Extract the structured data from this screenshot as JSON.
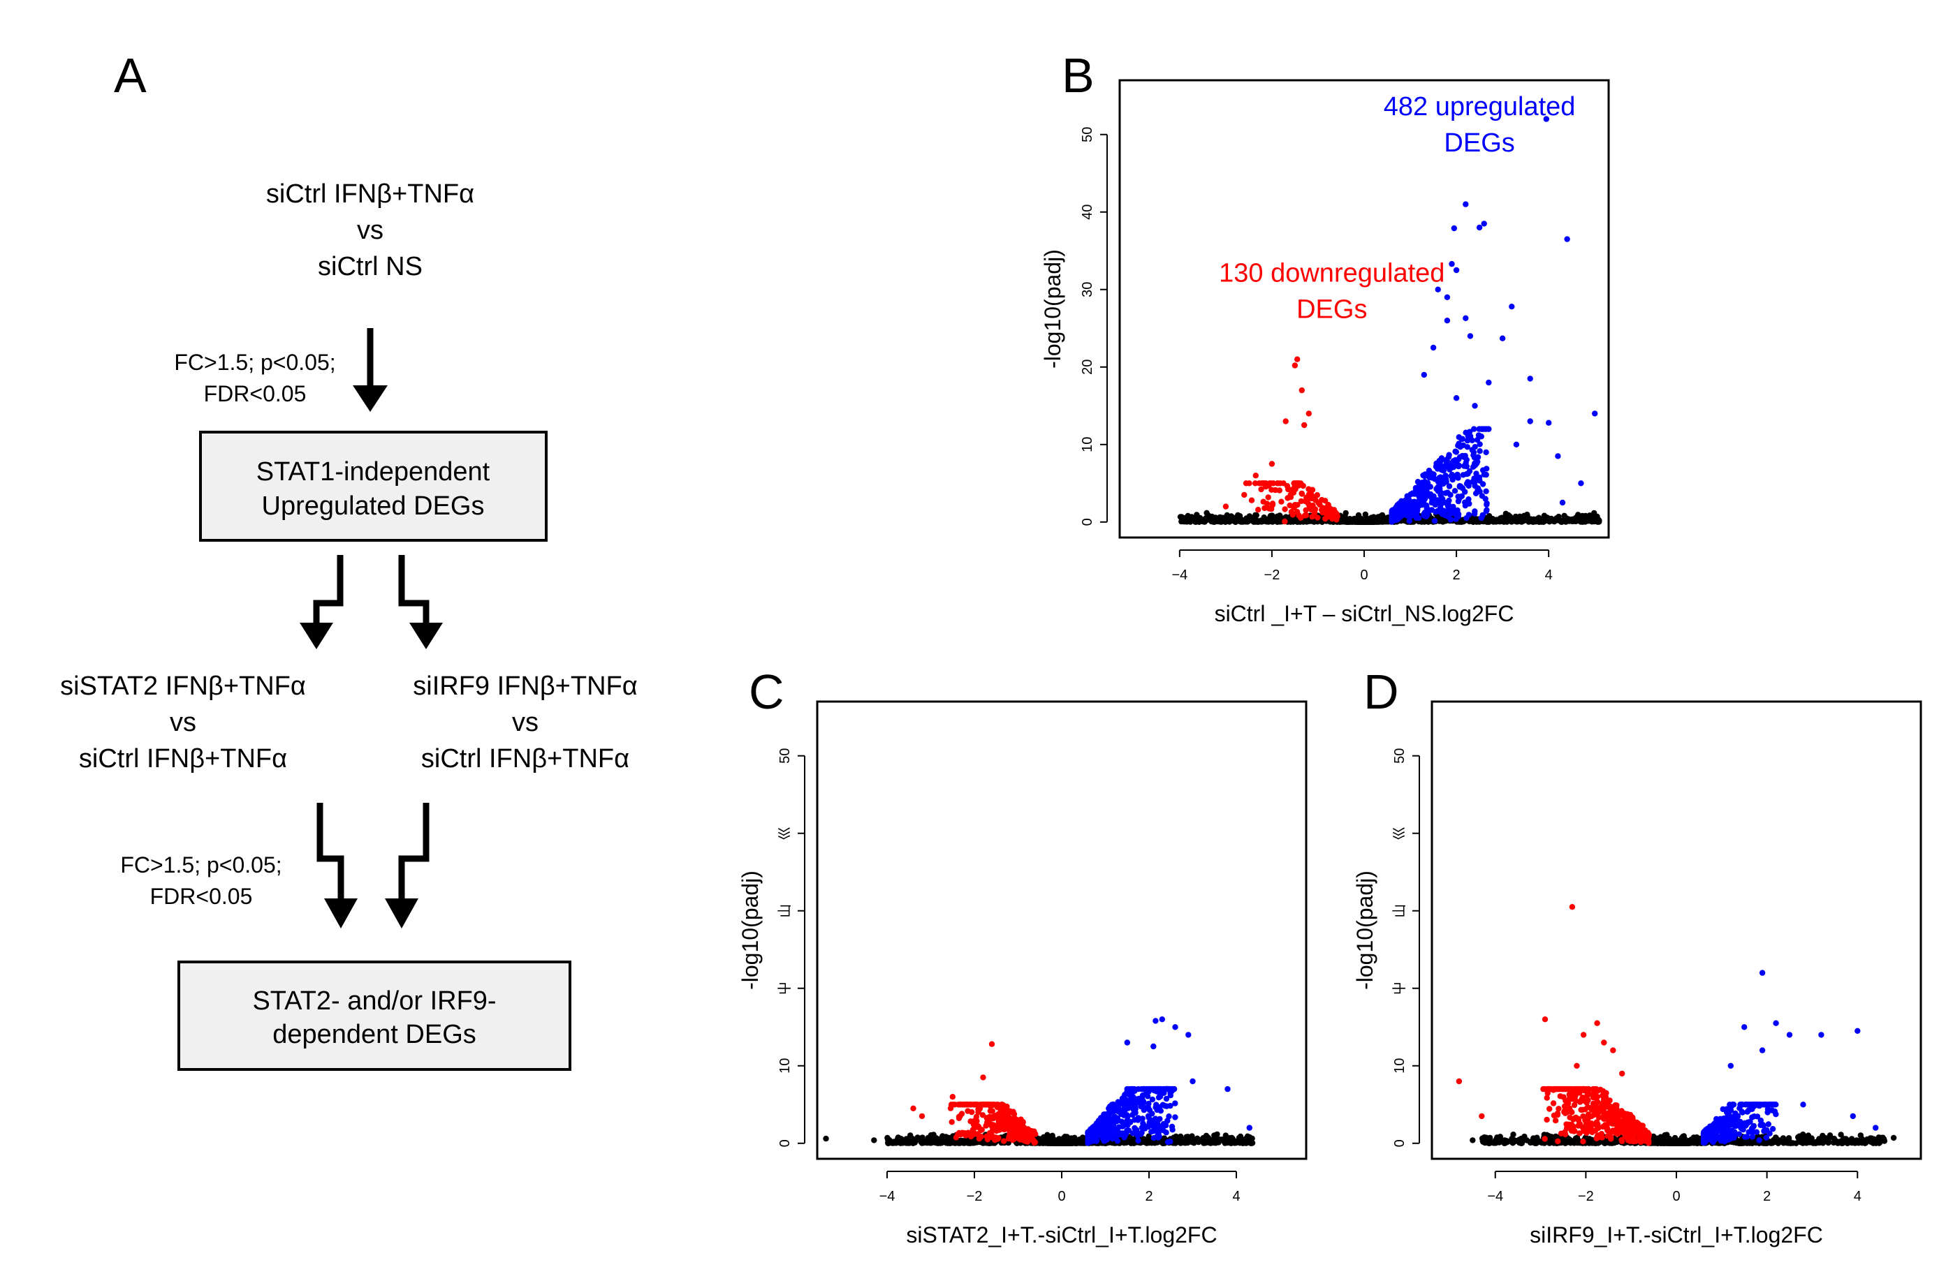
{
  "panels": {
    "A": {
      "letter": "A",
      "comparison1": [
        "siCtrl IFNβ+TNFα",
        "vs",
        "siCtrl NS"
      ],
      "criteria1": [
        "FC>1.5; p<0.05;",
        "FDR<0.05"
      ],
      "box1": [
        "STAT1-independent",
        "Upregulated DEGs"
      ],
      "comparison2_left": [
        "siSTAT2 IFNβ+TNFα",
        "vs",
        "siCtrl IFNβ+TNFα"
      ],
      "comparison2_right": [
        "siIRF9 IFNβ+TNFα",
        "vs",
        "siCtrl IFNβ+TNFα"
      ],
      "criteria2": [
        "FC>1.5; p<0.05;",
        "FDR<0.05"
      ],
      "box2": [
        "STAT2- and/or IRF9-",
        "dependent DEGs"
      ]
    },
    "B": {
      "letter": "B"
    },
    "C": {
      "letter": "C"
    },
    "D": {
      "letter": "D"
    }
  },
  "colors": {
    "up": "#0000ff",
    "down": "#ff0000",
    "ns": "#000000",
    "box_fill": "#f0f0f0"
  },
  "chart_data": [
    {
      "id": "B",
      "type": "scatter",
      "title": "",
      "xlabel": "siCtrl _I+T – siCtrl_NS.log2FC",
      "ylabel": "-log10(padj)",
      "xlim": [
        -5.3,
        5.3
      ],
      "ylim": [
        -2,
        57
      ],
      "xticks": [
        -4,
        -2,
        0,
        2,
        4
      ],
      "yticks": [
        0,
        10,
        20,
        30,
        40,
        50
      ],
      "ytick_labels": [
        "0",
        "10",
        "20",
        "30",
        "40",
        "50"
      ],
      "annotations": [
        {
          "lines": [
            "482 upregulated",
            "DEGs"
          ],
          "color": "#0000ff",
          "x": 2.5,
          "y": 52.5
        },
        {
          "lines": [
            "130 downregulated",
            "DEGs"
          ],
          "color": "#ff0000",
          "x": -0.7,
          "y": 31
        }
      ],
      "up": {
        "count": 482,
        "xmin": 0.6,
        "xmax": 2.7,
        "ymax": 12,
        "drops": [
          -0.4,
          0.5
        ]
      },
      "down": {
        "count": 130,
        "xmin": -2.6,
        "xmax": -0.58,
        "ymax": 5,
        "drops": [
          -1.0,
          -0.4
        ]
      },
      "ns_ranges": [
        -4.0,
        5.1
      ],
      "outliers_up": [
        [
          3.95,
          52.0
        ],
        [
          2.2,
          41.0
        ],
        [
          2.6,
          38.5
        ],
        [
          2.5,
          38.0
        ],
        [
          1.95,
          37.9
        ],
        [
          4.4,
          36.5
        ],
        [
          1.9,
          33.3
        ],
        [
          2.0,
          32.5
        ],
        [
          1.6,
          30.0
        ],
        [
          1.8,
          29.0
        ],
        [
          3.2,
          27.8
        ],
        [
          1.8,
          26.0
        ],
        [
          2.2,
          26.3
        ],
        [
          3.0,
          23.7
        ],
        [
          2.3,
          24.0
        ],
        [
          1.5,
          22.5
        ],
        [
          2.7,
          18.0
        ],
        [
          3.6,
          18.5
        ],
        [
          4.0,
          12.8
        ],
        [
          5.0,
          14.0
        ],
        [
          4.2,
          8.5
        ],
        [
          4.7,
          5.0
        ],
        [
          4.3,
          2.5
        ],
        [
          2.0,
          16.0
        ],
        [
          2.4,
          15.0
        ],
        [
          1.3,
          19.0
        ],
        [
          3.3,
          10.0
        ],
        [
          3.6,
          13.0
        ]
      ],
      "outliers_down": [
        [
          -1.45,
          21.0
        ],
        [
          -1.5,
          20.2
        ],
        [
          -1.35,
          17.0
        ],
        [
          -1.2,
          14.0
        ],
        [
          -1.3,
          12.5
        ],
        [
          -1.7,
          13.0
        ],
        [
          -2.0,
          7.5
        ],
        [
          -2.2,
          5.0
        ],
        [
          -2.35,
          6.0
        ],
        [
          -3.0,
          2.0
        ],
        [
          -2.6,
          3.5
        ]
      ],
      "ns_outliers": [
        [
          -3.9,
          0.5
        ],
        [
          -3.6,
          0.4
        ],
        [
          -3.3,
          0.7
        ],
        [
          4.6,
          0.6
        ],
        [
          4.8,
          0.8
        ],
        [
          5.05,
          0.7
        ]
      ]
    },
    {
      "id": "C",
      "type": "scatter",
      "title": "",
      "xlabel": "siSTAT2_I+T.-siCtrl_I+T.log2FC",
      "ylabel": "-log10(padj)",
      "xlim": [
        -5.6,
        5.6
      ],
      "ylim": [
        -2,
        57
      ],
      "xticks": [
        -4,
        -2,
        0,
        2,
        4
      ],
      "yticks": [
        0,
        10,
        20,
        30,
        40,
        50
      ],
      "ytick_labels": [
        "0",
        "10",
        "⼬",
        "⼭",
        "⼮",
        "50"
      ],
      "annotations": [],
      "up": {
        "count": 520,
        "xmin": 0.6,
        "xmax": 2.6,
        "ymax": 7,
        "drops": [
          0.0,
          0.6
        ]
      },
      "down": {
        "count": 330,
        "xmin": -2.6,
        "xmax": -0.6,
        "ymax": 5,
        "drops": [
          -1.2,
          -0.6
        ]
      },
      "ns_ranges": [
        -4.0,
        4.4
      ],
      "outliers_up": [
        [
          2.3,
          16.0
        ],
        [
          2.15,
          15.8
        ],
        [
          2.6,
          15.0
        ],
        [
          2.9,
          14.0
        ],
        [
          1.5,
          13.0
        ],
        [
          2.1,
          12.5
        ],
        [
          3.0,
          8.0
        ],
        [
          3.8,
          7.0
        ],
        [
          4.3,
          2.0
        ]
      ],
      "outliers_down": [
        [
          -1.6,
          12.8
        ],
        [
          -1.8,
          8.5
        ],
        [
          -3.4,
          4.5
        ],
        [
          -3.2,
          3.5
        ],
        [
          -2.5,
          6.0
        ]
      ],
      "ns_outliers": [
        [
          -5.4,
          0.6
        ],
        [
          -4.3,
          0.4
        ],
        [
          4.3,
          0.8
        ]
      ]
    },
    {
      "id": "D",
      "type": "scatter",
      "title": "",
      "xlabel": "siIRF9_I+T.-siCtrl_I+T.log2FC",
      "ylabel": "-log10(padj)",
      "xlim": [
        -5.4,
        5.4
      ],
      "ylim": [
        -2,
        57
      ],
      "xticks": [
        -4,
        -2,
        0,
        2,
        4
      ],
      "yticks": [
        0,
        10,
        20,
        30,
        40,
        50
      ],
      "ytick_labels": [
        "0",
        "10",
        "⼬",
        "⼭",
        "⼮",
        "50"
      ],
      "annotations": [],
      "up": {
        "count": 300,
        "xmin": 0.6,
        "xmax": 2.2,
        "ymax": 5,
        "drops": [
          0.0,
          0.6
        ]
      },
      "down": {
        "count": 480,
        "xmin": -3.0,
        "xmax": -0.6,
        "ymax": 7,
        "drops": [
          -1.3,
          -0.6
        ]
      },
      "ns_ranges": [
        -4.3,
        4.6
      ],
      "outliers_up": [
        [
          1.9,
          22.0
        ],
        [
          1.5,
          15.0
        ],
        [
          2.2,
          15.5
        ],
        [
          2.5,
          14.0
        ],
        [
          3.2,
          14.0
        ],
        [
          4.0,
          14.5
        ],
        [
          1.9,
          12.0
        ],
        [
          1.2,
          10.0
        ],
        [
          2.8,
          5.0
        ],
        [
          3.9,
          3.5
        ],
        [
          4.4,
          2.0
        ]
      ],
      "outliers_down": [
        [
          -2.3,
          30.5
        ],
        [
          -2.9,
          16.0
        ],
        [
          -1.75,
          15.5
        ],
        [
          -2.05,
          14.0
        ],
        [
          -1.6,
          13.0
        ],
        [
          -1.4,
          12.0
        ],
        [
          -4.8,
          8.0
        ],
        [
          -4.3,
          3.5
        ],
        [
          -2.2,
          10.0
        ],
        [
          -1.2,
          9.0
        ]
      ],
      "ns_outliers": [
        [
          -4.5,
          0.4
        ],
        [
          4.8,
          0.7
        ]
      ]
    }
  ]
}
